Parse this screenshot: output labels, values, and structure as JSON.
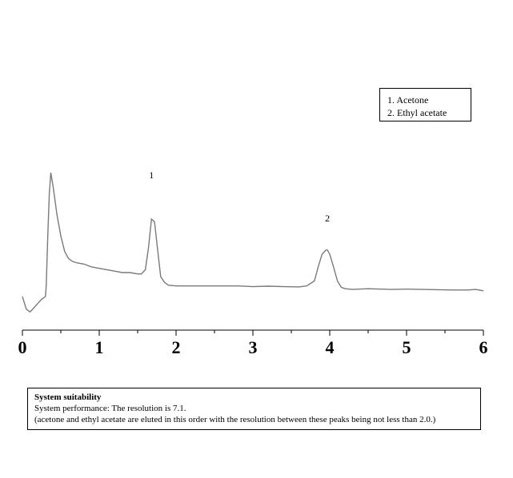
{
  "chart_data": {
    "type": "line",
    "title": "",
    "xlabel": "",
    "ylabel": "",
    "xlim": [
      0,
      6
    ],
    "ylim": [
      0,
      100
    ],
    "x_ticks": [
      "0",
      "1",
      "2",
      "3",
      "4",
      "5",
      "6"
    ],
    "grid": false,
    "legend_placement": "top-right",
    "legend": [
      "1. Acetone",
      "2. Ethyl acetate"
    ],
    "peak_labels": [
      {
        "label": "1",
        "x": 1.68
      },
      {
        "label": "2",
        "x": 3.97
      }
    ],
    "series": [
      {
        "x": [
          0,
          0.05,
          0.1,
          0.15,
          0.2,
          0.25,
          0.3,
          0.31,
          0.33,
          0.35,
          0.37,
          0.4,
          0.45,
          0.5,
          0.55,
          0.6,
          0.65,
          0.7,
          0.8,
          0.9,
          1.0,
          1.1,
          1.2,
          1.3,
          1.4,
          1.5,
          1.55,
          1.6,
          1.64,
          1.68,
          1.72,
          1.76,
          1.8,
          1.85,
          1.9,
          2.0,
          2.2,
          2.5,
          2.8,
          3.0,
          3.2,
          3.4,
          3.6,
          3.7,
          3.8,
          3.85,
          3.9,
          3.95,
          3.97,
          4.0,
          4.05,
          4.1,
          4.15,
          4.2,
          4.3,
          4.5,
          4.8,
          5.0,
          5.2,
          5.4,
          5.6,
          5.8,
          5.9,
          6.0
        ],
        "values": [
          12,
          3,
          1,
          4,
          7,
          10,
          12,
          20,
          55,
          85,
          100,
          90,
          70,
          55,
          44,
          39,
          37,
          36,
          35,
          33,
          32,
          31,
          30,
          29,
          29,
          28,
          28,
          31,
          46,
          67,
          65,
          45,
          26,
          22,
          20,
          19.5,
          19.5,
          19.5,
          19.5,
          19,
          19.3,
          19,
          18.8,
          19.5,
          23,
          33,
          42,
          45,
          45,
          42,
          33,
          23,
          18.5,
          17.5,
          17,
          17.5,
          17,
          17.2,
          17,
          16.8,
          16.6,
          16.6,
          17,
          16
        ]
      }
    ]
  },
  "legend": {
    "item1": "1. Acetone",
    "item2": "2. Ethyl acetate"
  },
  "peak_labels": {
    "peak1": "1",
    "peak2": "2"
  },
  "suitability": {
    "title": "System suitability",
    "line1": "System performance: The resolution is 7.1.",
    "line2": "(acetone and ethyl acetate are eluted in this order with the resolution between these peaks being not less than 2.0.)"
  }
}
